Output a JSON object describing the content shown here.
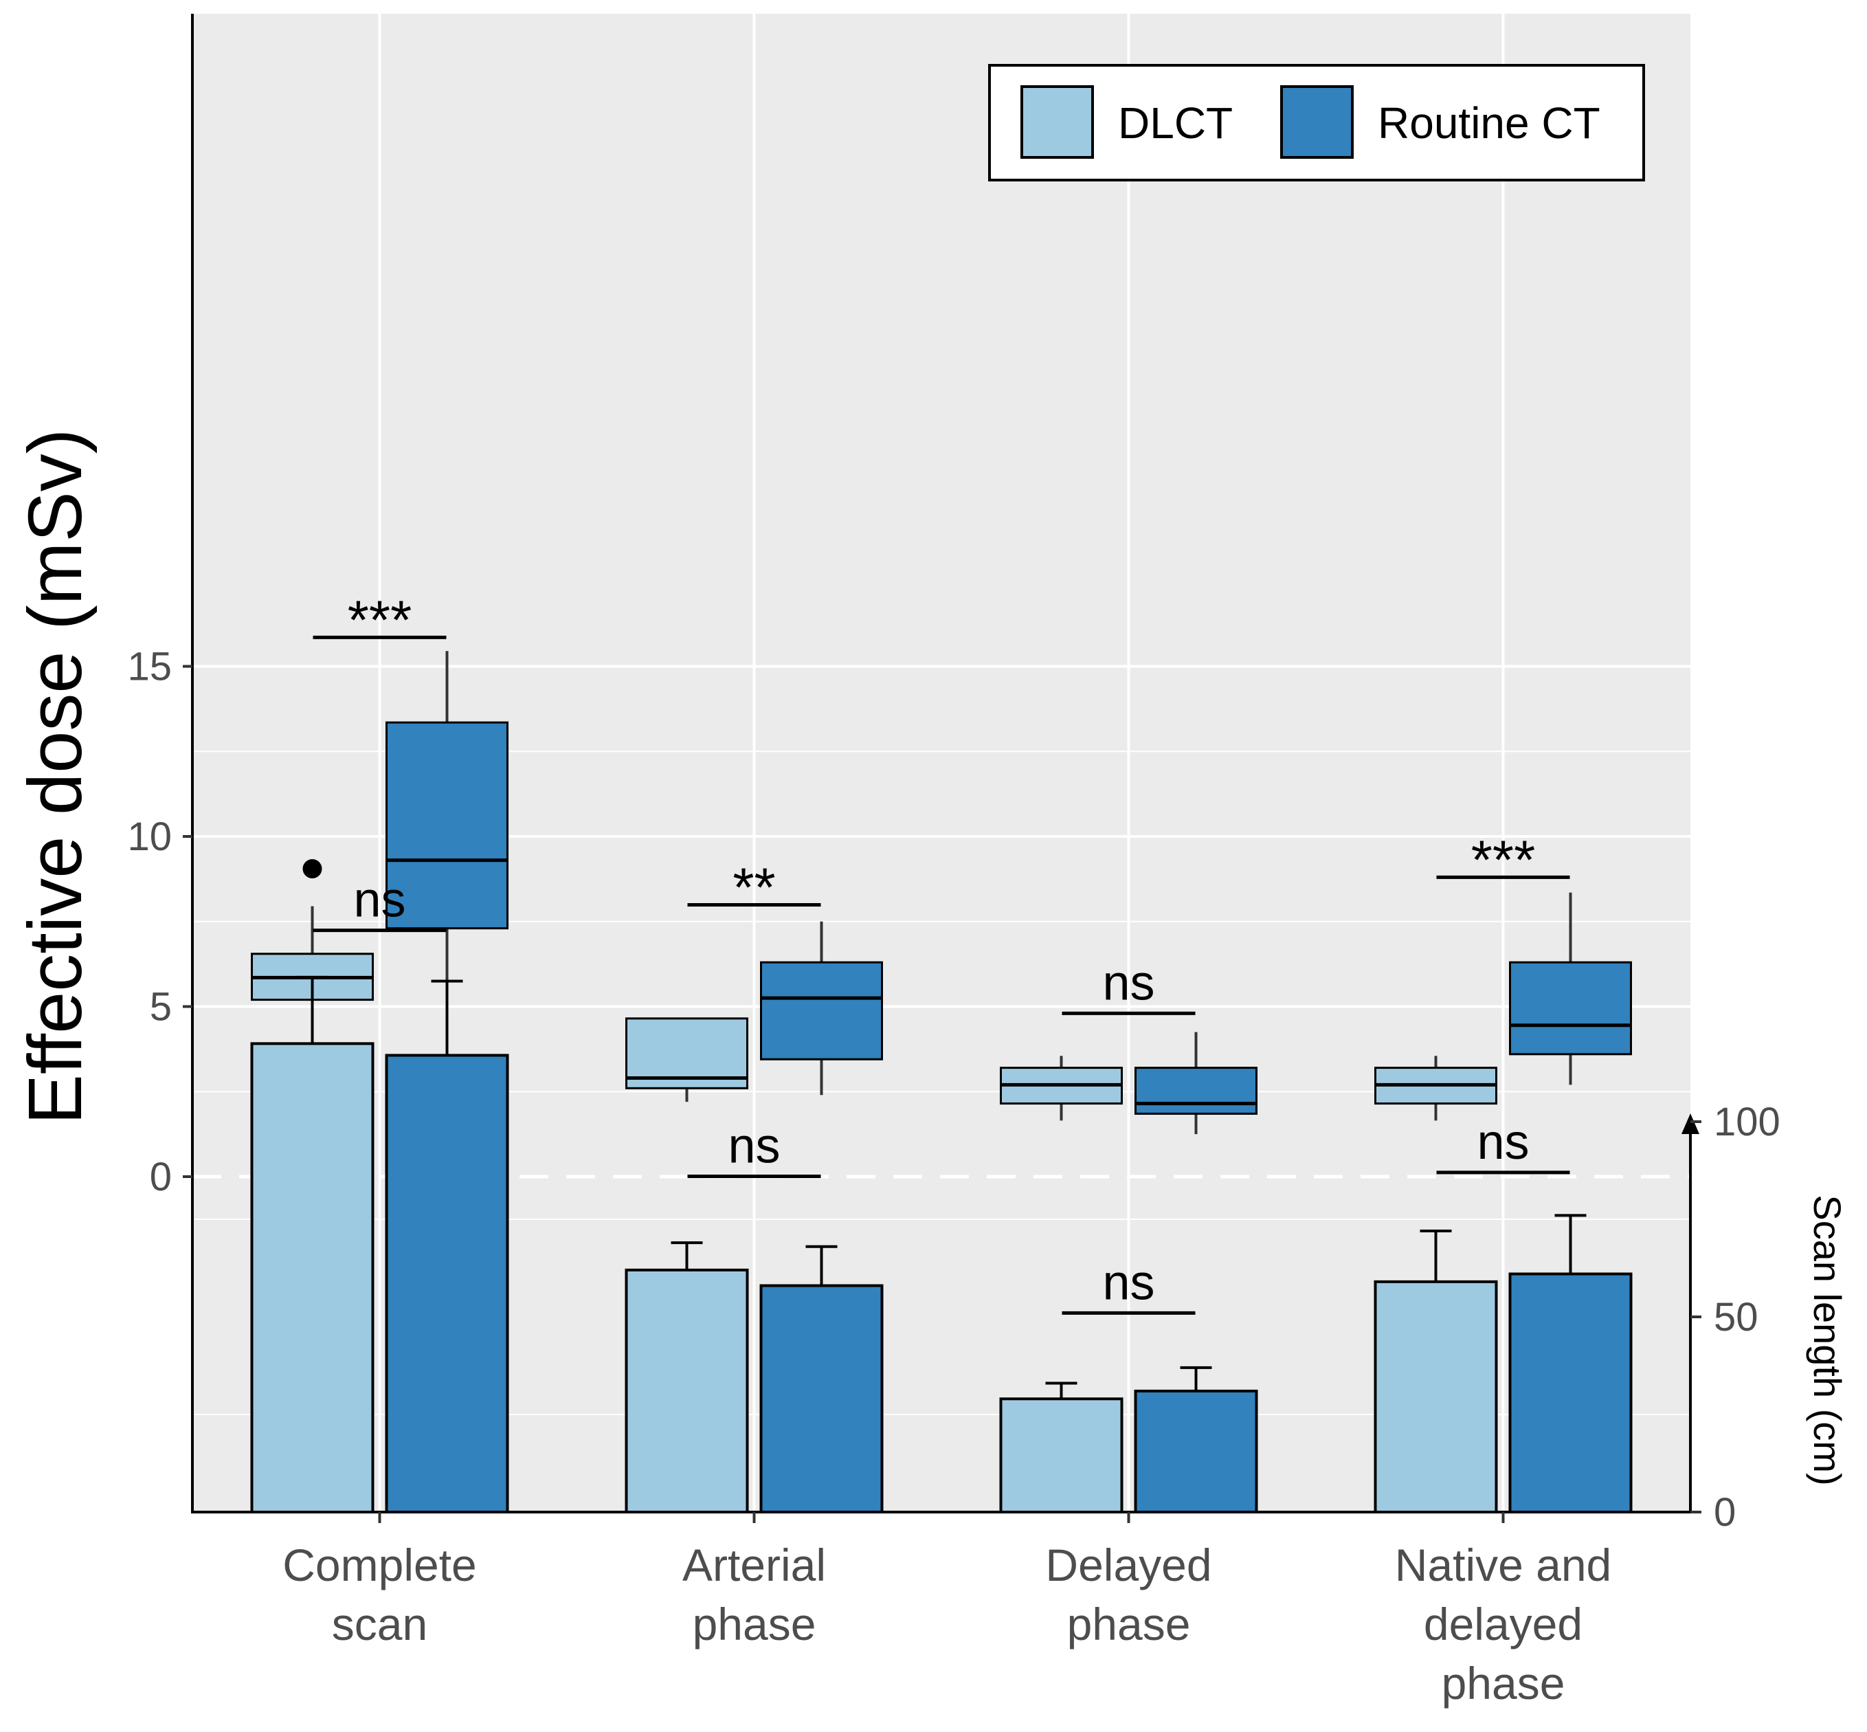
{
  "chart_data": {
    "type": "box+bar",
    "categories": [
      "Complete\nscan",
      "Arterial\nphase",
      "Delayed\nphase",
      "Native and\ndelayed\nphase"
    ],
    "ylabel": "Effective dose (mSv)",
    "y2label": "Scan length (cm)",
    "ylim": [
      0,
      16.5
    ],
    "y_ticks": [
      "0",
      "5",
      "10",
      "15"
    ],
    "y2_ticks": [
      "0",
      "50",
      "100"
    ],
    "y2lim": [
      0,
      130
    ],
    "grid": true,
    "legend": {
      "position": "top-right",
      "entries": [
        "DLCT",
        "Routine CT"
      ]
    },
    "colors": {
      "DLCT": "#9ecae1",
      "Routine CT": "#3182bd",
      "panel": "#ebebeb",
      "grid": "#ffffff"
    },
    "series": [
      {
        "name": "DLCT",
        "box": [
          {
            "whisker_low": 4.2,
            "q1": 5.2,
            "median": 5.85,
            "q3": 6.55,
            "whisker_high": 7.95,
            "outliers": [
              9.05
            ]
          },
          {
            "whisker_low": 2.2,
            "q1": 2.6,
            "median": 2.9,
            "q3": 4.65,
            "whisker_high": 4.65,
            "outliers": []
          },
          {
            "whisker_low": 1.65,
            "q1": 2.15,
            "median": 2.7,
            "q3": 3.2,
            "whisker_high": 3.55,
            "outliers": []
          },
          {
            "whisker_low": 1.65,
            "q1": 2.15,
            "median": 2.7,
            "q3": 3.2,
            "whisker_high": 3.55,
            "outliers": []
          }
        ],
        "scan_length": [
          120,
          62,
          29,
          59
        ],
        "scan_length_err": [
          17,
          7,
          4,
          13
        ]
      },
      {
        "name": "Routine CT",
        "box": [
          {
            "whisker_low": 5.2,
            "q1": 7.3,
            "median": 9.3,
            "q3": 13.35,
            "whisker_high": 15.45,
            "outliers": []
          },
          {
            "whisker_low": 2.4,
            "q1": 3.45,
            "median": 5.25,
            "q3": 6.3,
            "whisker_high": 7.5,
            "outliers": []
          },
          {
            "whisker_low": 1.25,
            "q1": 1.85,
            "median": 2.15,
            "q3": 3.2,
            "whisker_high": 4.25,
            "outliers": []
          },
          {
            "whisker_low": 2.7,
            "q1": 3.6,
            "median": 4.45,
            "q3": 6.3,
            "whisker_high": 8.35,
            "outliers": []
          }
        ],
        "scan_length": [
          117,
          58,
          31,
          61
        ],
        "scan_length_err": [
          19,
          10,
          6,
          15
        ]
      }
    ],
    "significance": {
      "dose": [
        "***",
        "**",
        "ns",
        "***"
      ],
      "dose_bar_y": [
        15.85,
        7.99,
        4.8,
        8.8
      ],
      "length": [
        "ns",
        "ns",
        "ns",
        "ns"
      ],
      "length_bar_y": [
        149,
        86,
        51,
        87
      ]
    }
  }
}
